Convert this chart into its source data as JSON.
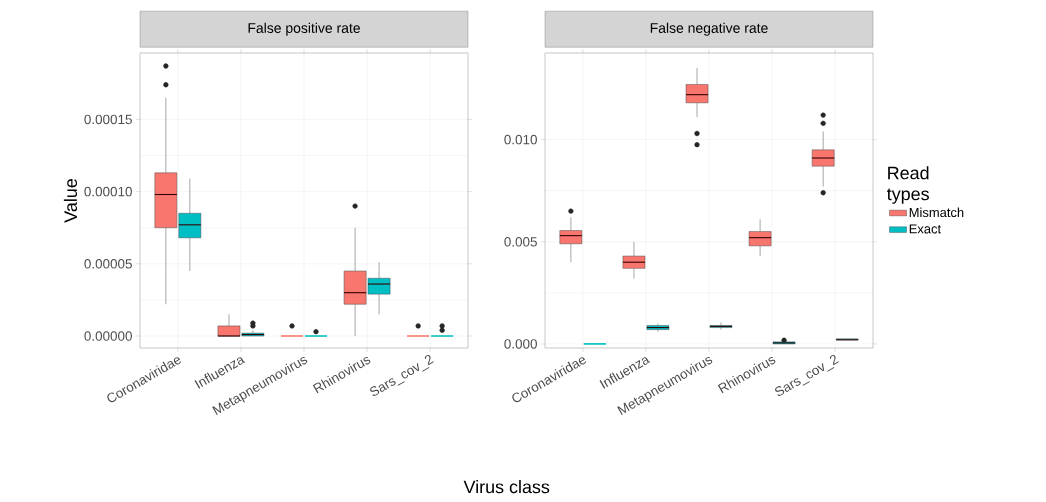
{
  "chart_data": [
    {
      "type": "box",
      "title": "False positive rate",
      "xlabel": "Virus class",
      "ylabel": "Value",
      "categories": [
        "Coronaviridae",
        "Influenza",
        "Metapneumovirus",
        "Rhinovirus",
        "Sars_cov_2"
      ],
      "ylim": [
        -8.3e-06,
        0.000196
      ],
      "yticks": [
        {
          "value": 0,
          "label": "0.00000"
        },
        {
          "value": 5e-05,
          "label": "0.00005"
        },
        {
          "value": 0.0001,
          "label": "0.00010"
        },
        {
          "value": 0.00015,
          "label": "0.00015"
        }
      ],
      "grid": true,
      "series": [
        {
          "color": "#f8766d",
          "boxes": [
            {
              "low": 2.2e-05,
              "q1": 7.5e-05,
              "median": 9.8e-05,
              "q3": 0.000113,
              "high": 0.000165,
              "outliers": [
                0.000174,
                0.000187
              ]
            },
            {
              "low": 0,
              "q1": 0,
              "median": 0,
              "q3": 7e-06,
              "high": 1.5e-05
            },
            {
              "low": 0,
              "q1": 0,
              "median": 0,
              "q3": 0,
              "high": 0,
              "outliers": [
                7e-06
              ]
            },
            {
              "low": 0,
              "q1": 2.2e-05,
              "median": 3e-05,
              "q3": 4.5e-05,
              "high": 7.5e-05,
              "outliers": [
                9e-05
              ]
            },
            {
              "low": 0,
              "q1": 0,
              "median": 0,
              "q3": 0,
              "high": 0,
              "outliers": [
                7e-06
              ]
            }
          ]
        },
        {
          "color": "#00bfc4",
          "boxes": [
            {
              "low": 4.5e-05,
              "q1": 6.8e-05,
              "median": 7.7e-05,
              "q3": 8.5e-05,
              "high": 0.000109
            },
            {
              "low": 0,
              "q1": 0,
              "median": 1e-06,
              "q3": 2e-06,
              "high": 4e-06,
              "outliers": [
                7e-06,
                9e-06
              ]
            },
            {
              "low": 0,
              "q1": 0,
              "median": 0,
              "q3": 0,
              "high": 0,
              "outliers": [
                3e-06
              ]
            },
            {
              "low": 1.5e-05,
              "q1": 2.9e-05,
              "median": 3.6e-05,
              "q3": 4e-05,
              "high": 5.1e-05
            },
            {
              "low": 0,
              "q1": 0,
              "median": 0,
              "q3": 0,
              "high": 0,
              "outliers": [
                4e-06,
                7e-06
              ]
            }
          ]
        }
      ]
    },
    {
      "type": "box",
      "title": "False negative rate",
      "legend_title": "Read types",
      "categories": [
        "Coronaviridae",
        "Influenza",
        "Metapneumovirus",
        "Rhinovirus",
        "Sars_cov_2"
      ],
      "ylim": [
        -0.0002,
        0.01424
      ],
      "yticks": [
        {
          "value": 0,
          "label": "0.000"
        },
        {
          "value": 0.005,
          "label": "0.005"
        },
        {
          "value": 0.01,
          "label": "0.010"
        }
      ],
      "grid": true,
      "legend": "right",
      "series": [
        {
          "name": "Mismatch",
          "color": "#f8766d",
          "boxes": [
            {
              "low": 0.004,
              "q1": 0.0049,
              "median": 0.0053,
              "q3": 0.00555,
              "high": 0.0062,
              "outliers": [
                0.0065
              ]
            },
            {
              "low": 0.0032,
              "q1": 0.0037,
              "median": 0.004,
              "q3": 0.0043,
              "high": 0.005
            },
            {
              "low": 0.0111,
              "q1": 0.0118,
              "median": 0.0122,
              "q3": 0.0127,
              "high": 0.0135,
              "outliers": [
                0.00975,
                0.0103
              ]
            },
            {
              "low": 0.0043,
              "q1": 0.0048,
              "median": 0.0052,
              "q3": 0.0055,
              "high": 0.0061
            },
            {
              "low": 0.0077,
              "q1": 0.0087,
              "median": 0.0091,
              "q3": 0.0095,
              "high": 0.0104,
              "outliers": [
                0.0074,
                0.0108,
                0.0112
              ]
            }
          ]
        },
        {
          "name": "Exact",
          "color": "#00bfc4",
          "boxes": [
            {
              "low": 0,
              "q1": 0,
              "median": 0,
              "q3": 0,
              "high": 0
            },
            {
              "low": 0.0006,
              "q1": 0.0007,
              "median": 0.0008,
              "q3": 0.0009,
              "high": 0.001
            },
            {
              "low": 0.0007,
              "q1": 0.0008,
              "median": 0.00086,
              "q3": 0.0009,
              "high": 0.00105
            },
            {
              "low": 0,
              "q1": 0,
              "median": 5e-05,
              "q3": 0.0001,
              "high": 0.00015,
              "outliers": [
                0.00018
              ]
            },
            {
              "low": 0.0002,
              "q1": 0.0002,
              "median": 0.0002,
              "q3": 0.00025,
              "high": 0.00025
            }
          ]
        }
      ]
    }
  ]
}
